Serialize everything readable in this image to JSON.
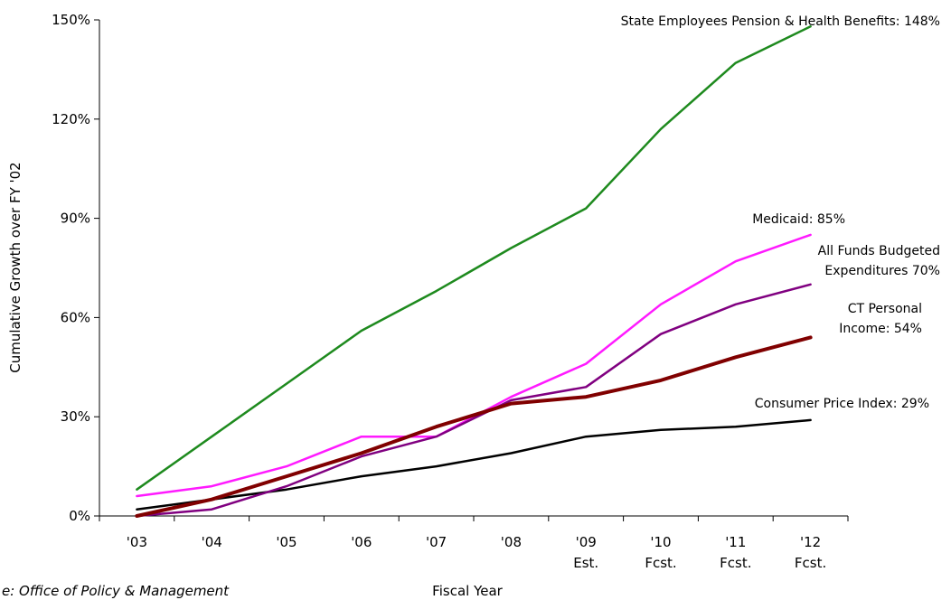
{
  "chart_data": {
    "type": "line",
    "xlabel": "Fiscal Year",
    "ylabel": "Cumulative Growth over FY '02",
    "ylim": [
      0,
      150
    ],
    "yticks": [
      0,
      30,
      60,
      90,
      120,
      150
    ],
    "ytick_labels": [
      "0%",
      "30%",
      "60%",
      "90%",
      "120%",
      "150%"
    ],
    "categories": [
      [
        "'03"
      ],
      [
        "'04"
      ],
      [
        "'05"
      ],
      [
        "'06"
      ],
      [
        "'07"
      ],
      [
        "'08"
      ],
      [
        "'09",
        "Est."
      ],
      [
        "'10",
        "Fcst."
      ],
      [
        "'11",
        "Fcst."
      ],
      [
        "'12",
        "Fcst."
      ]
    ],
    "grid": false,
    "source_note": "e:  Office of Policy & Management",
    "series": [
      {
        "id": "pension",
        "annotation": [
          "State Employees Pension & Health Benefits: 148%"
        ],
        "color": "#1e8a1e",
        "width": 2.5,
        "values": [
          8,
          24,
          40,
          56,
          68,
          81,
          93,
          117,
          137,
          148
        ]
      },
      {
        "id": "medicaid",
        "annotation": [
          "Medicaid: 85%"
        ],
        "color": "#ff1aff",
        "width": 2.5,
        "values": [
          6,
          9,
          15,
          24,
          24,
          36,
          46,
          64,
          77,
          85
        ]
      },
      {
        "id": "allfunds",
        "annotation": [
          "All Funds Budgeted",
          "Expenditures 70%"
        ],
        "color": "#800080",
        "width": 2.5,
        "values": [
          0,
          2,
          9,
          18,
          24,
          35,
          39,
          55,
          64,
          70
        ]
      },
      {
        "id": "income",
        "annotation": [
          "CT Personal",
          "Income: 54%"
        ],
        "color": "#800000",
        "width": 4,
        "values": [
          0,
          5,
          12,
          19,
          27,
          34,
          36,
          41,
          48,
          54
        ]
      },
      {
        "id": "cpi",
        "annotation": [
          "Consumer Price Index: 29%"
        ],
        "color": "#000000",
        "width": 2.5,
        "values": [
          2,
          5,
          8,
          12,
          15,
          19,
          24,
          26,
          27,
          29
        ]
      }
    ]
  }
}
